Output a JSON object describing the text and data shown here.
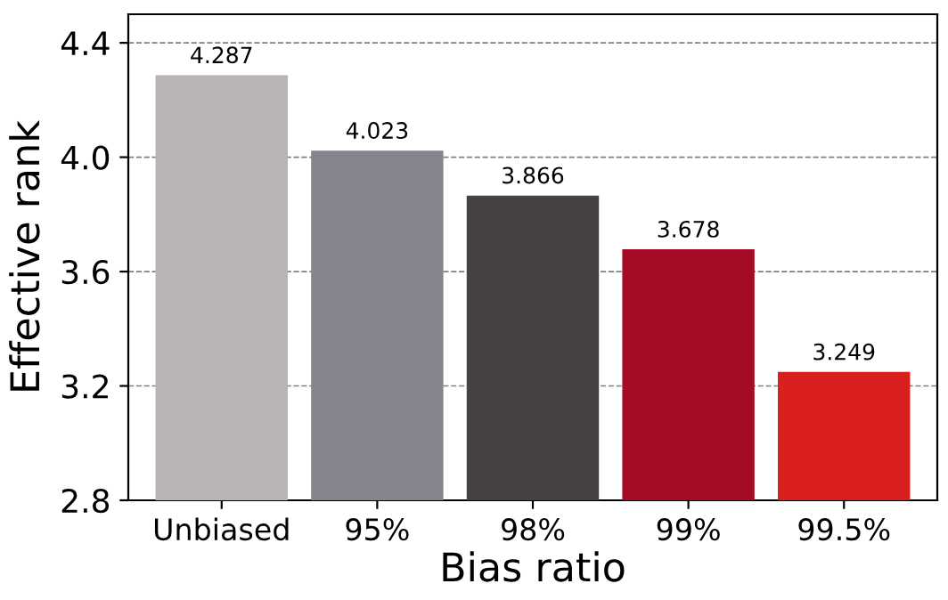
{
  "chart_data": {
    "type": "bar",
    "xlabel": "Bias ratio",
    "ylabel": "Effective rank",
    "categories": [
      "Unbiased",
      "95%",
      "98%",
      "99%",
      "99.5%"
    ],
    "values": [
      4.287,
      4.023,
      3.866,
      3.678,
      3.249
    ],
    "colors": [
      "#b8b3b5",
      "#86858d",
      "#474144",
      "#a50b26",
      "#da1f1f"
    ],
    "ylim": [
      2.8,
      4.5
    ],
    "yticks": [
      2.8,
      3.2,
      3.6,
      {
        "value": 4,
        "label": "4.0"
      },
      4.4
    ],
    "grid": "y",
    "data_labels": true
  }
}
